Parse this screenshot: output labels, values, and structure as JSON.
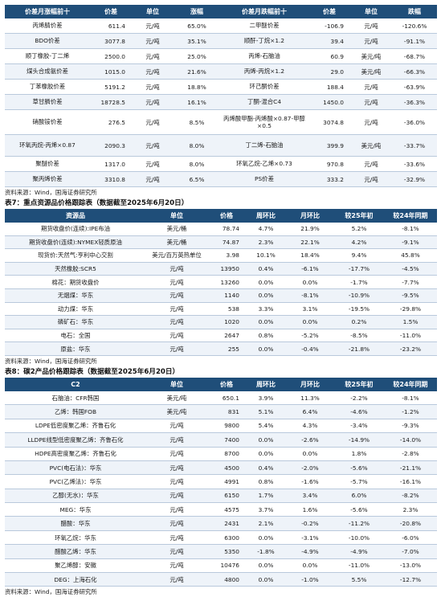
{
  "table1": {
    "headers": [
      "价差月涨幅前十",
      "价差",
      "单位",
      "涨幅",
      "价差月跌幅前十",
      "价差",
      "单位",
      "跌幅"
    ],
    "rows": [
      [
        "丙烯腈价差",
        "611.4",
        "元/吨",
        "65.0%",
        "二甲醚价差",
        "-106.9",
        "元/吨",
        "-120.6%"
      ],
      [
        "BDO价差",
        "3077.8",
        "元/吨",
        "35.1%",
        "顺酐-丁烷×1.2",
        "39.4",
        "元/吨",
        "-91.1%"
      ],
      [
        "顺丁橡胶-丁二烯",
        "2500.0",
        "元/吨",
        "25.0%",
        "丙烯-石脑油",
        "60.9",
        "美元/吨",
        "-68.7%"
      ],
      [
        "煤头合成氨价差",
        "1015.0",
        "元/吨",
        "21.6%",
        "丙烯-丙烷×1.2",
        "29.0",
        "美元/吨",
        "-66.3%"
      ],
      [
        "丁苯橡胶价差",
        "5191.2",
        "元/吨",
        "18.8%",
        "环己酮价差",
        "188.4",
        "元/吨",
        "-63.9%"
      ],
      [
        "草甘膦价差",
        "18728.5",
        "元/吨",
        "16.1%",
        "丁酮-混合C4",
        "1450.0",
        "元/吨",
        "-36.3%"
      ],
      [
        "硝酸铵价差",
        "276.5",
        "元/吨",
        "8.5%",
        "丙烯酸甲酯-丙烯酸×0.87-甲醇×0.5",
        "3074.8",
        "元/吨",
        "-36.0%"
      ],
      [
        "环氧丙烷-丙烯×0.87",
        "2090.3",
        "元/吨",
        "8.0%",
        "丁二烯-石脑油",
        "399.9",
        "美元/吨",
        "-33.7%"
      ],
      [
        "聚醚价差",
        "1317.0",
        "元/吨",
        "8.0%",
        "环氧乙烷-乙烯×0.73",
        "970.8",
        "元/吨",
        "-33.6%"
      ],
      [
        "聚丙烯价差",
        "3310.8",
        "元/吨",
        "6.5%",
        "PS价差",
        "333.2",
        "元/吨",
        "-32.9%"
      ]
    ],
    "source": "资料来源：Wind，国海证券研究所"
  },
  "table2": {
    "title": "表7：重点资源品价格跟踪表（数据截至2025年6月20日）",
    "headers": [
      "资源品",
      "单位",
      "价格",
      "周环比",
      "月环比",
      "较25年初",
      "较24年同期"
    ],
    "rows": [
      [
        "期货收盘价(连续):IPE布油",
        "美元/桶",
        "78.74",
        "4.7%",
        "21.9%",
        "5.2%",
        "-8.1%"
      ],
      [
        "期货收盘价(连续):NYMEX轻质原油",
        "美元/桶",
        "74.87",
        "2.3%",
        "22.1%",
        "4.2%",
        "-9.1%"
      ],
      [
        "现货价:天然气:亨利中心交割",
        "美元/百万英热单位",
        "3.98",
        "10.1%",
        "18.4%",
        "9.4%",
        "45.8%"
      ],
      [
        "天然橡胶:SCR5",
        "元/吨",
        "13950",
        "0.4%",
        "-6.1%",
        "-17.7%",
        "-4.5%"
      ],
      [
        "棉花：期货收盘价",
        "元/吨",
        "13260",
        "0.0%",
        "0.0%",
        "-1.7%",
        "-7.7%"
      ],
      [
        "无烟煤：华东",
        "元/吨",
        "1140",
        "0.0%",
        "-8.1%",
        "-10.9%",
        "-9.5%"
      ],
      [
        "动力煤：华东",
        "元/吨",
        "538",
        "3.3%",
        "3.1%",
        "-19.5%",
        "-29.8%"
      ],
      [
        "磷矿石：华东",
        "元/吨",
        "1020",
        "0.0%",
        "0.0%",
        "0.2%",
        "1.5%"
      ],
      [
        "电石：全国",
        "元/吨",
        "2647",
        "0.8%",
        "-5.2%",
        "-8.5%",
        "-11.0%"
      ],
      [
        "原盐：华东",
        "元/吨",
        "255",
        "0.0%",
        "-0.4%",
        "-21.8%",
        "-23.2%"
      ]
    ],
    "source": "资料来源：Wind，国海证券研究所"
  },
  "table3": {
    "title": "表8：碳2产品价格跟踪表（数据截至2025年6月20日）",
    "headers": [
      "C2",
      "单位",
      "价格",
      "周环比",
      "月环比",
      "较25年初",
      "较24年同期"
    ],
    "rows": [
      [
        "石脑油：CFR韩国",
        "美元/吨",
        "650.1",
        "3.9%",
        "11.3%",
        "-2.2%",
        "-8.1%"
      ],
      [
        "乙烯：韩国FOB",
        "美元/吨",
        "831",
        "5.1%",
        "6.4%",
        "-4.6%",
        "-1.2%"
      ],
      [
        "LDPE低密度聚乙烯：齐鲁石化",
        "元/吨",
        "9800",
        "5.4%",
        "4.3%",
        "-3.4%",
        "-9.3%"
      ],
      [
        "LLDPE线型低密度聚乙烯：齐鲁石化",
        "元/吨",
        "7400",
        "0.0%",
        "-2.6%",
        "-14.9%",
        "-14.0%"
      ],
      [
        "HDPE高密度聚乙烯：齐鲁石化",
        "元/吨",
        "8700",
        "0.0%",
        "0.0%",
        "1.8%",
        "-2.8%"
      ],
      [
        "PVC(电石法)：华东",
        "元/吨",
        "4500",
        "0.4%",
        "-2.0%",
        "-5.6%",
        "-21.1%"
      ],
      [
        "PVC(乙烯法)：华东",
        "元/吨",
        "4991",
        "0.8%",
        "-1.6%",
        "-5.7%",
        "-16.1%"
      ],
      [
        "乙醇(无水)：华东",
        "元/吨",
        "6150",
        "1.7%",
        "3.4%",
        "6.0%",
        "-8.2%"
      ],
      [
        "MEG：华东",
        "元/吨",
        "4575",
        "3.7%",
        "1.6%",
        "-5.6%",
        "2.3%"
      ],
      [
        "醋酸：华东",
        "元/吨",
        "2431",
        "2.1%",
        "-0.2%",
        "-11.2%",
        "-20.8%"
      ],
      [
        "环氧乙烷：华东",
        "元/吨",
        "6300",
        "0.0%",
        "-3.1%",
        "-10.0%",
        "-6.0%"
      ],
      [
        "醋酸乙烯：华东",
        "元/吨",
        "5350",
        "-1.8%",
        "-4.9%",
        "-4.9%",
        "-7.0%"
      ],
      [
        "聚乙烯醇：安徽",
        "元/吨",
        "10476",
        "0.0%",
        "0.0%",
        "-11.0%",
        "-13.0%"
      ],
      [
        "DEG：上海石化",
        "元/吨",
        "4800",
        "0.0%",
        "-1.0%",
        "5.5%",
        "-12.7%"
      ]
    ],
    "source": "资料来源：Wind，国海证券研究所"
  }
}
